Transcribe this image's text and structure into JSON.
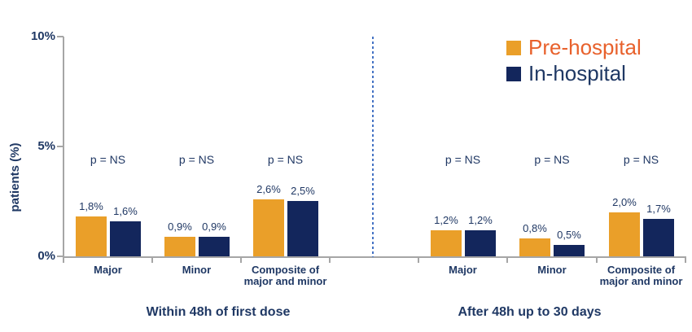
{
  "chart_data": {
    "type": "bar",
    "title": "",
    "ylabel": "patients (%)",
    "ylim": [
      0,
      10
    ],
    "ytick_values": [
      0,
      5,
      10
    ],
    "yticks": [
      "0%",
      "5%",
      "10%"
    ],
    "grid": false,
    "legend_position": "top-right",
    "series": [
      {
        "name": "Pre-hospital",
        "color": "#EA9F29",
        "label_color": "#E8612C"
      },
      {
        "name": "In-hospital",
        "color": "#13265C",
        "label_color": "#1F3864"
      }
    ],
    "panels": [
      {
        "title": "Within 48h of first dose",
        "groups": [
          {
            "category": "Major",
            "p_label": "p = NS",
            "values": [
              1.8,
              1.6
            ],
            "value_labels": [
              "1,8%",
              "1,6%"
            ]
          },
          {
            "category": "Minor",
            "p_label": "p = NS",
            "values": [
              0.9,
              0.9
            ],
            "value_labels": [
              "0,9%",
              "0,9%"
            ]
          },
          {
            "category": "Composite of major and minor",
            "p_label": "p = NS",
            "values": [
              2.6,
              2.5
            ],
            "value_labels": [
              "2,6%",
              "2,5%"
            ]
          }
        ]
      },
      {
        "title": "After 48h up to 30 days",
        "groups": [
          {
            "category": "Major",
            "p_label": "p = NS",
            "values": [
              1.2,
              1.2
            ],
            "value_labels": [
              "1,2%",
              "1,2%"
            ]
          },
          {
            "category": "Minor",
            "p_label": "p = NS",
            "values": [
              0.8,
              0.5
            ],
            "value_labels": [
              "0,8%",
              "0,5%"
            ]
          },
          {
            "category": "Composite of major and minor",
            "p_label": "p = NS",
            "values": [
              2.0,
              1.7
            ],
            "value_labels": [
              "2,0%",
              "1,7%"
            ]
          }
        ]
      }
    ],
    "separator": {
      "style": "dashed",
      "color": "#4472C4"
    },
    "colors": {
      "axis": "#A6A6A6",
      "text": "#1F3864"
    }
  }
}
